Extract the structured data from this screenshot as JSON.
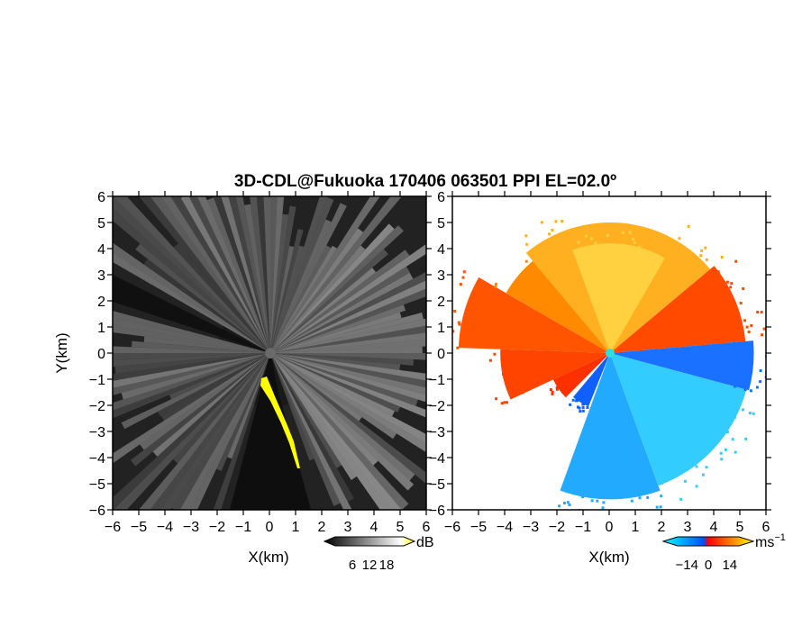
{
  "title": "3D-CDL@Fukuoka 170406 063501 PPI EL=02.0º",
  "chart_data": [
    {
      "type": "heatmap",
      "panel": "reflectivity",
      "xlabel": "X(km)",
      "ylabel": "Y(km)",
      "xlim": [
        -6,
        6
      ],
      "ylim": [
        -6,
        6
      ],
      "xticks": [
        -6,
        -5,
        -4,
        -3,
        -2,
        -1,
        0,
        1,
        2,
        3,
        4,
        5,
        6
      ],
      "yticks": [
        -6,
        -5,
        -4,
        -3,
        -2,
        -1,
        0,
        1,
        2,
        3,
        4,
        5,
        6
      ],
      "colorbar": {
        "unit": "dB",
        "ticks": [
          6,
          12,
          18
        ],
        "colors": [
          "#000000",
          "#ffffff",
          "#ffff00"
        ]
      },
      "grid": false
    },
    {
      "type": "heatmap",
      "panel": "doppler velocity",
      "xlabel": "X(km)",
      "xlim": [
        -6,
        6
      ],
      "ylim": [
        -6,
        6
      ],
      "xticks": [
        -6,
        -5,
        -4,
        -3,
        -2,
        -1,
        0,
        1,
        2,
        3,
        4,
        5,
        6
      ],
      "yticks": [
        -6,
        -5,
        -4,
        -3,
        -2,
        -1,
        0,
        1,
        2,
        3,
        4,
        5,
        6
      ],
      "colorbar": {
        "unit": "ms",
        "unit_exponent": "−1",
        "ticks": [
          -14,
          0,
          14
        ],
        "colors": [
          "#00ffff",
          "#0050ff",
          "#ff0000",
          "#ff9900",
          "#ffff00"
        ]
      },
      "grid": false
    }
  ]
}
